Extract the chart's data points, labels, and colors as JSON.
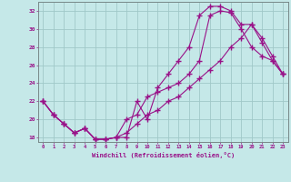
{
  "xlabel": "Windchill (Refroidissement éolien,°C)",
  "bg_color": "#c5e8e8",
  "grid_color": "#a0c8c8",
  "line_color": "#991188",
  "xlim": [
    -0.5,
    23.5
  ],
  "ylim": [
    17.5,
    33.0
  ],
  "xticks": [
    0,
    1,
    2,
    3,
    4,
    5,
    6,
    7,
    8,
    9,
    10,
    11,
    12,
    13,
    14,
    15,
    16,
    17,
    18,
    19,
    20,
    21,
    22,
    23
  ],
  "yticks": [
    18,
    20,
    22,
    24,
    26,
    28,
    30,
    32
  ],
  "line1_x": [
    0,
    1,
    2,
    3,
    4,
    5,
    6,
    7,
    8,
    9,
    10,
    11,
    12,
    13,
    14,
    15,
    16,
    17,
    18,
    19,
    20,
    21,
    22,
    23
  ],
  "line1_y": [
    22.0,
    20.5,
    19.5,
    18.5,
    19.0,
    17.8,
    17.8,
    18.0,
    18.0,
    22.0,
    20.0,
    23.5,
    25.0,
    26.5,
    28.0,
    31.5,
    32.5,
    32.5,
    32.0,
    30.5,
    30.5,
    28.5,
    26.5,
    25.0
  ],
  "line2_x": [
    0,
    1,
    2,
    3,
    4,
    5,
    6,
    7,
    8,
    9,
    10,
    11,
    12,
    13,
    14,
    15,
    16,
    17,
    18,
    19,
    20,
    21,
    22,
    23
  ],
  "line2_y": [
    22.0,
    20.5,
    19.5,
    18.5,
    19.0,
    17.8,
    17.8,
    18.0,
    20.0,
    20.5,
    22.5,
    23.0,
    23.5,
    24.0,
    25.0,
    26.5,
    31.5,
    32.0,
    31.8,
    30.0,
    28.0,
    27.0,
    26.5,
    25.0
  ],
  "line3_x": [
    0,
    1,
    2,
    3,
    4,
    5,
    6,
    7,
    8,
    9,
    10,
    11,
    12,
    13,
    14,
    15,
    16,
    17,
    18,
    19,
    20,
    21,
    22,
    23
  ],
  "line3_y": [
    22.0,
    20.5,
    19.5,
    18.5,
    19.0,
    17.8,
    17.8,
    18.0,
    18.5,
    19.5,
    20.5,
    21.0,
    22.0,
    22.5,
    23.5,
    24.5,
    25.5,
    26.5,
    28.0,
    29.0,
    30.5,
    29.0,
    27.0,
    25.0
  ]
}
